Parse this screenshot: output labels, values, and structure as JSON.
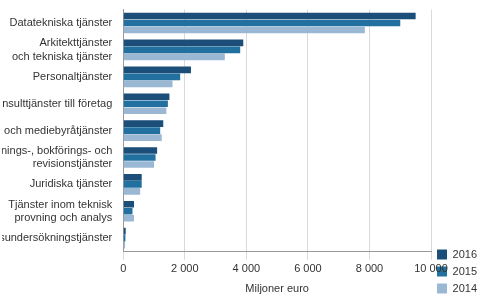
{
  "chart_data": {
    "type": "bar",
    "orientation": "horizontal",
    "x_label": "Miljoner euro",
    "categories": [
      "Datatekniska tjänster",
      "Arkitekttjänster\noch tekniska tjänster",
      "Personaltjänster",
      "Konsulttjänster till företag",
      "Reklam- och mediebyråtjänster",
      "Redovisnings-, bokförings- och\nrevisionstjänster",
      "Juridiska tjänster",
      "Tjänster inom teknisk\nprovning och analys",
      "Marknadsundersökningstjänster"
    ],
    "series": [
      {
        "name": "2016",
        "color": "#1b4e78",
        "values": [
          9500,
          3900,
          2200,
          1500,
          1300,
          1100,
          600,
          350,
          80
        ]
      },
      {
        "name": "2015",
        "color": "#21709f",
        "values": [
          9000,
          3800,
          1850,
          1450,
          1200,
          1050,
          600,
          300,
          70
        ]
      },
      {
        "name": "2014",
        "color": "#9ab8d4",
        "values": [
          7850,
          3300,
          1600,
          1400,
          1250,
          1000,
          550,
          350,
          60
        ]
      }
    ],
    "xlim": [
      0,
      10000
    ],
    "xticks": [
      0,
      {
        "value": 2000,
        "label": "2 000"
      },
      {
        "value": 4000,
        "label": "4 000"
      },
      {
        "value": 6000,
        "label": "6 000"
      },
      {
        "value": 8000,
        "label": "8 000"
      },
      {
        "value": 10000,
        "label": "10 000"
      }
    ],
    "grid": true,
    "legend": "lower right"
  }
}
